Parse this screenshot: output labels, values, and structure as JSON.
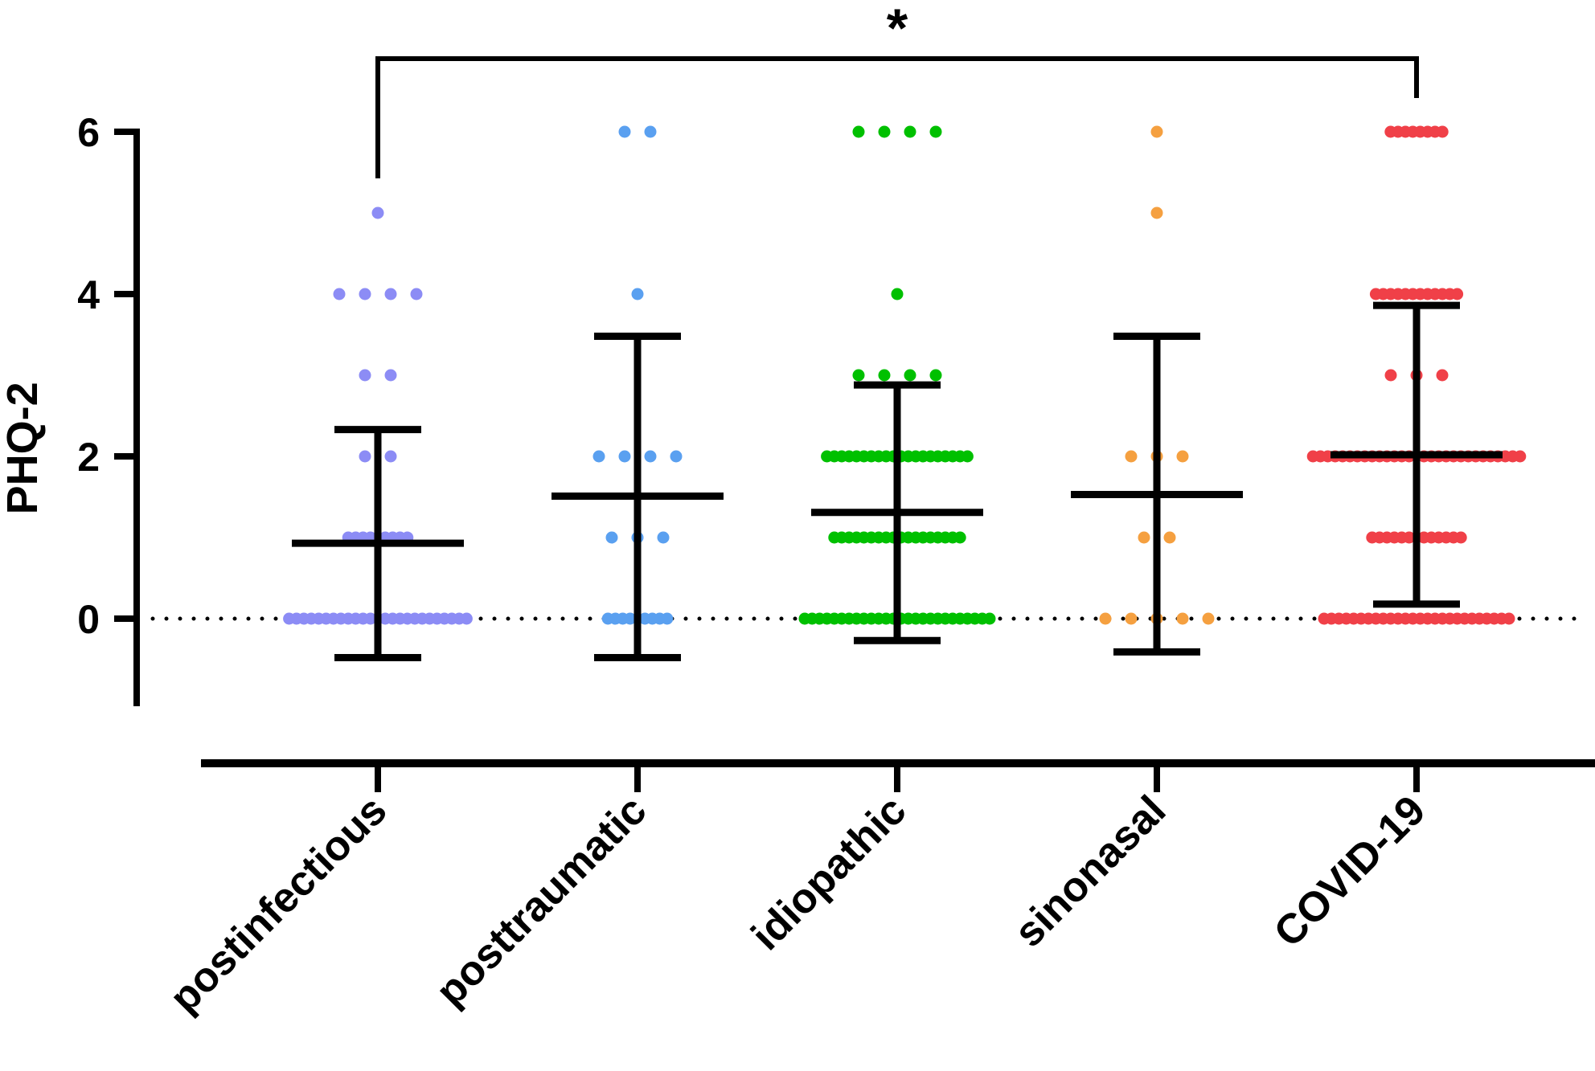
{
  "chart_data": {
    "type": "scatter",
    "title": "",
    "xlabel": "",
    "ylabel": "PHQ-2",
    "ylim": [
      -1,
      6
    ],
    "yticks": [
      "0",
      "2",
      "4",
      "6"
    ],
    "grid": false,
    "reference_line": {
      "y": 0,
      "style": "dotted"
    },
    "significance": {
      "label": "*",
      "from": "postinfectious",
      "to": "COVID-19"
    },
    "categories": [
      "postinfectious",
      "posttraumatic",
      "idiopathic",
      "sinonasal",
      "COVID-19"
    ],
    "series": [
      {
        "color": "#8c8cf5",
        "counts": {
          "0": 25,
          "1": 9,
          "2": 2,
          "3": 2,
          "4": 4,
          "5": 1
        },
        "mean": 0.93,
        "sd_low": -0.48,
        "sd_high": 2.33
      },
      {
        "color": "#5aa0f0",
        "counts": {
          "0": 9,
          "1": 3,
          "2": 4,
          "4": 1,
          "6": 2
        },
        "mean": 1.51,
        "sd_low": -0.48,
        "sd_high": 3.48
      },
      {
        "color": "#00c000",
        "counts": {
          "0": 26,
          "1": 18,
          "2": 20,
          "3": 4,
          "4": 1,
          "6": 4
        },
        "mean": 1.31,
        "sd_low": -0.27,
        "sd_high": 2.88
      },
      {
        "color": "#f5a040",
        "counts": {
          "0": 5,
          "1": 2,
          "2": 3,
          "5": 1,
          "6": 1
        },
        "mean": 1.53,
        "sd_low": -0.41,
        "sd_high": 3.48
      },
      {
        "color": "#f04048",
        "counts": {
          "0": 26,
          "1": 13,
          "2": 29,
          "3": 3,
          "4": 12,
          "6": 8
        },
        "mean": 2.02,
        "sd_low": 0.18,
        "sd_high": 3.86
      }
    ]
  }
}
